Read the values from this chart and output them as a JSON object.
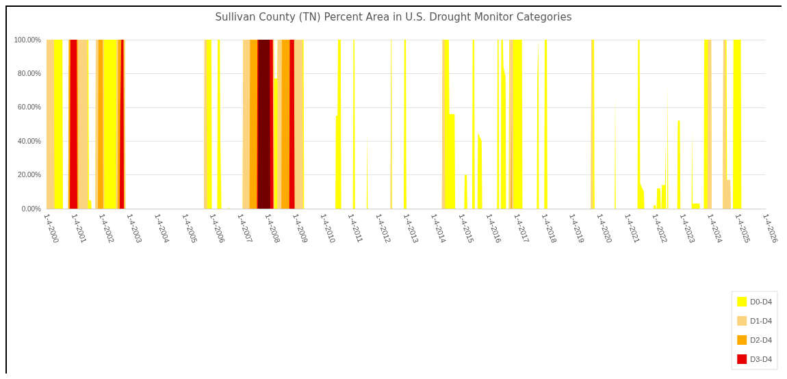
{
  "chart_data": {
    "type": "area",
    "title": "Sullivan County (TN) Percent Area in U.S. Drought Monitor Categories",
    "xlim": [
      "2000-01-04",
      "2026-01-04"
    ],
    "xticks": [
      {
        "value": "2000-01-04",
        "label": "1-4-2000"
      },
      {
        "value": "2001-01-04",
        "label": "1-4-2001"
      },
      {
        "value": "2002-01-04",
        "label": "1-4-2002"
      },
      {
        "value": "2003-01-04",
        "label": "1-4-2003"
      },
      {
        "value": "2004-01-04",
        "label": "1-4-2004"
      },
      {
        "value": "2005-01-04",
        "label": "1-4-2005"
      },
      {
        "value": "2006-01-04",
        "label": "1-4-2006"
      },
      {
        "value": "2007-01-04",
        "label": "1-4-2007"
      },
      {
        "value": "2008-01-04",
        "label": "1-4-2008"
      },
      {
        "value": "2009-01-04",
        "label": "1-4-2009"
      },
      {
        "value": "2010-01-04",
        "label": "1-4-2010"
      },
      {
        "value": "2011-01-04",
        "label": "1-4-2011"
      },
      {
        "value": "2012-01-04",
        "label": "1-4-2012"
      },
      {
        "value": "2013-01-04",
        "label": "1-4-2013"
      },
      {
        "value": "2014-01-04",
        "label": "1-4-2014"
      },
      {
        "value": "2015-01-04",
        "label": "1-4-2015"
      },
      {
        "value": "2016-01-04",
        "label": "1-4-2016"
      },
      {
        "value": "2017-01-04",
        "label": "1-4-2017"
      },
      {
        "value": "2018-01-04",
        "label": "1-4-2018"
      },
      {
        "value": "2019-01-04",
        "label": "1-4-2019"
      },
      {
        "value": "2020-01-04",
        "label": "1-4-2020"
      },
      {
        "value": "2021-01-04",
        "label": "1-4-2021"
      },
      {
        "value": "2022-01-04",
        "label": "1-4-2022"
      },
      {
        "value": "2023-01-04",
        "label": "1-4-2023"
      },
      {
        "value": "2024-01-04",
        "label": "1-4-2024"
      },
      {
        "value": "2025-01-04",
        "label": "1-4-2025"
      },
      {
        "value": "2026-01-04",
        "label": "1-4-2026"
      }
    ],
    "ylim": [
      0,
      100
    ],
    "yticks": [
      {
        "value": 0,
        "label": "0.00%"
      },
      {
        "value": 20,
        "label": "20.00%"
      },
      {
        "value": 40,
        "label": "40.00%"
      },
      {
        "value": 60,
        "label": "60.00%"
      },
      {
        "value": 80,
        "label": "80.00%"
      },
      {
        "value": 100,
        "label": "100.00%"
      }
    ],
    "grid": "y",
    "legend": "bottom right",
    "marker": "none",
    "series": [
      {
        "name": "D0-D4",
        "color": "#ffff00",
        "x": [
          "2000-01-04",
          "2000-08-01",
          "2000-08-08",
          "2000-10-17",
          "2000-10-24",
          "2001-07-10",
          "2001-07-17",
          "2001-08-14",
          "2001-08-21",
          "2001-10-09",
          "2001-10-16",
          "2002-11-05",
          "2002-11-12",
          "2005-09-13",
          "2005-09-20",
          "2005-12-20",
          "2005-12-27",
          "2006-03-07",
          "2006-03-14",
          "2006-04-11",
          "2006-04-18",
          "2006-05-02",
          "2006-08-01",
          "2006-08-08",
          "2006-08-15",
          "2007-02-06",
          "2007-02-13",
          "2008-03-25",
          "2008-04-01",
          "2008-05-06",
          "2008-05-13",
          "2009-04-21",
          "2009-04-28",
          "2010-06-15",
          "2010-06-22",
          "2010-07-13",
          "2010-07-20",
          "2010-08-24",
          "2010-08-31",
          "2011-02-01",
          "2011-02-08",
          "2011-02-22",
          "2011-03-01",
          "2011-08-02",
          "2011-08-09",
          "2011-08-16",
          "2012-06-12",
          "2012-06-19",
          "2012-06-26",
          "2012-07-03",
          "2012-12-04",
          "2012-12-11",
          "2013-01-01",
          "2013-01-08",
          "2014-04-22",
          "2014-04-29",
          "2014-07-22",
          "2014-07-29",
          "2014-10-07",
          "2014-10-14",
          "2015-02-10",
          "2015-02-17",
          "2015-03-17",
          "2015-03-24",
          "2015-05-26",
          "2015-06-02",
          "2015-06-23",
          "2015-06-30",
          "2015-08-04",
          "2015-08-11",
          "2015-09-29",
          "2015-10-06",
          "2016-04-19",
          "2016-04-26",
          "2016-05-10",
          "2016-05-17",
          "2016-06-07",
          "2016-06-14",
          "2016-07-05",
          "2016-07-12",
          "2016-08-09",
          "2016-08-16",
          "2016-09-20",
          "2016-09-27",
          "2017-03-14",
          "2017-03-21",
          "2017-09-26",
          "2017-10-03",
          "2017-10-17",
          "2017-10-24",
          "2018-01-02",
          "2018-01-09",
          "2018-02-06",
          "2018-02-13",
          "2019-09-10",
          "2019-09-17",
          "2019-10-22",
          "2019-10-29",
          "2020-07-21",
          "2020-07-28",
          "2020-08-04",
          "2021-05-18",
          "2021-05-25",
          "2021-06-15",
          "2021-06-22",
          "2021-08-10",
          "2021-08-17",
          "2021-12-14",
          "2021-12-21",
          "2022-01-11",
          "2022-01-18",
          "2022-01-25",
          "2022-02-01",
          "2022-03-15",
          "2022-03-22",
          "2022-03-29",
          "2022-04-05",
          "2022-05-17",
          "2022-05-24",
          "2022-05-31",
          "2022-06-14",
          "2022-06-21",
          "2022-06-28",
          "2022-10-25",
          "2022-11-01",
          "2022-11-29",
          "2022-12-06",
          "2023-05-02",
          "2023-05-09",
          "2023-05-16",
          "2023-08-15",
          "2023-08-22",
          "2023-10-10",
          "2023-10-17",
          "2024-01-16",
          "2024-01-23",
          "2024-06-18",
          "2024-06-25",
          "2024-08-06",
          "2024-08-13",
          "2024-09-24",
          "2024-10-01",
          "2024-10-29",
          "2024-11-05",
          "2025-02-11",
          "2025-02-18"
        ],
        "values": [
          100,
          100,
          0,
          0,
          100,
          100,
          5,
          5,
          0,
          0,
          100,
          100,
          0,
          0,
          100,
          100,
          0,
          0,
          100,
          100,
          40,
          0,
          0,
          1,
          0,
          0,
          100,
          100,
          77,
          77,
          100,
          100,
          0,
          0,
          55,
          55,
          100,
          100,
          0,
          0,
          100,
          100,
          0,
          0,
          45,
          0,
          0,
          100,
          100,
          0,
          0,
          100,
          100,
          0,
          0,
          100,
          100,
          56,
          56,
          0,
          0,
          20,
          20,
          0,
          0,
          100,
          100,
          0,
          0,
          45,
          40,
          0,
          0,
          100,
          100,
          0,
          0,
          100,
          100,
          84,
          78,
          0,
          0,
          100,
          100,
          0,
          0,
          78,
          100,
          0,
          0,
          100,
          100,
          0,
          0,
          100,
          100,
          0,
          0,
          68,
          0,
          0,
          100,
          100,
          15,
          10,
          0,
          0,
          2,
          2,
          0,
          0,
          12,
          12,
          0,
          0,
          14,
          14,
          40,
          0,
          0,
          75,
          0,
          0,
          52,
          52,
          0,
          0,
          46,
          3,
          3,
          0,
          0,
          100,
          100,
          0,
          0,
          100,
          100,
          17,
          17,
          0,
          0,
          100,
          100,
          0
        ]
      },
      {
        "name": "D1-D4",
        "color": "#fcd37f",
        "x": [
          "2000-01-04",
          "2000-04-11",
          "2000-04-18",
          "2000-10-17",
          "2000-10-24",
          "2001-06-26",
          "2001-07-03",
          "2001-10-09",
          "2001-10-16",
          "2002-01-29",
          "2002-02-05",
          "2002-07-09",
          "2002-07-16",
          "2002-11-05",
          "2002-11-12",
          "2005-09-13",
          "2005-09-20",
          "2005-10-18",
          "2005-10-25",
          "2007-02-06",
          "2007-02-13",
          "2008-03-25",
          "2008-04-01",
          "2008-05-06",
          "2008-05-13",
          "2009-04-07",
          "2009-04-14",
          "2012-06-12",
          "2012-06-19",
          "2012-06-26",
          "2014-04-22",
          "2014-04-29",
          "2014-05-27",
          "2014-06-03",
          "2016-09-27",
          "2016-10-04",
          "2016-11-15",
          "2016-11-22",
          "2019-09-10",
          "2019-09-17",
          "2019-10-01",
          "2019-10-08",
          "2023-11-28",
          "2023-12-05",
          "2024-01-16",
          "2024-01-23",
          "2024-06-18",
          "2024-06-25",
          "2024-07-23",
          "2024-07-30",
          "2024-09-24",
          "2024-10-01"
        ],
        "values": [
          100,
          100,
          0,
          0,
          100,
          100,
          0,
          0,
          100,
          100,
          0,
          0,
          100,
          100,
          0,
          0,
          100,
          100,
          0,
          0,
          100,
          100,
          0,
          0,
          100,
          100,
          0,
          0,
          100,
          0,
          0,
          100,
          100,
          0,
          0,
          100,
          100,
          0,
          0,
          100,
          100,
          0,
          0,
          100,
          100,
          0,
          0,
          100,
          100,
          17,
          17,
          0
        ]
      },
      {
        "name": "D2-D4",
        "color": "#ffaa00",
        "x": [
          "2000-10-17",
          "2000-10-24",
          "2001-02-20",
          "2001-02-27",
          "2001-11-13",
          "2001-11-20",
          "2002-01-15",
          "2002-01-22",
          "2002-07-30",
          "2002-08-06",
          "2002-10-22",
          "2002-10-29",
          "2007-05-08",
          "2007-05-15",
          "2008-03-11",
          "2008-03-18",
          "2008-07-01",
          "2008-07-08",
          "2008-12-16",
          "2008-12-23",
          "2016-10-18",
          "2016-10-25",
          "2016-11-01"
        ],
        "values": [
          0,
          100,
          100,
          0,
          0,
          100,
          100,
          0,
          0,
          100,
          100,
          0,
          0,
          100,
          100,
          0,
          0,
          100,
          100,
          0,
          0,
          60,
          0
        ]
      },
      {
        "name": "D3-D4",
        "color": "#e60000",
        "x": [
          "2000-11-07",
          "2000-11-14",
          "2001-02-06",
          "2001-02-13",
          "2002-08-27",
          "2002-09-03",
          "2002-09-17",
          "2002-10-15",
          "2002-10-22",
          "2007-08-14",
          "2007-08-21",
          "2008-03-11",
          "2008-03-18",
          "2008-10-14",
          "2008-10-21",
          "2008-12-16",
          "2008-12-23"
        ],
        "values": [
          0,
          100,
          100,
          0,
          0,
          55,
          100,
          100,
          0,
          0,
          100,
          100,
          0,
          0,
          100,
          100,
          0
        ]
      },
      {
        "color": "#730000",
        "x": [
          "2007-08-28",
          "2007-09-04",
          "2008-01-29",
          "2008-02-05"
        ],
        "values": [
          0,
          100,
          100,
          0
        ]
      }
    ]
  }
}
